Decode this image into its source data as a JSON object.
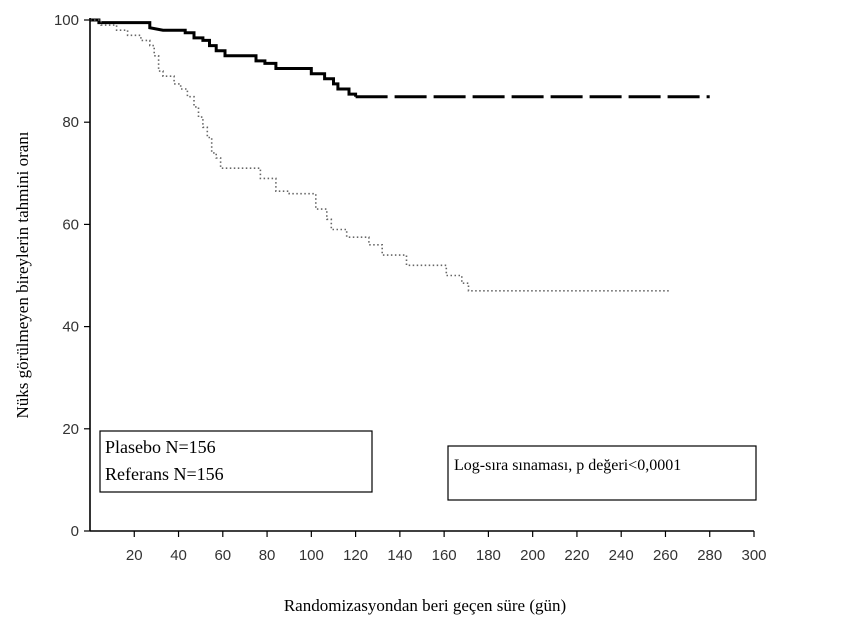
{
  "chart_data": {
    "type": "line",
    "xlabel": "Randomizasyondan beri geçen süre (gün)",
    "ylabel": "Nüks görülmeyen bireylerin tahmini oranı",
    "xlim": [
      0,
      300
    ],
    "ylim": [
      0,
      100
    ],
    "x_ticks": [
      20,
      40,
      60,
      80,
      100,
      120,
      140,
      160,
      180,
      200,
      220,
      240,
      260,
      280,
      300
    ],
    "y_ticks": [
      0,
      20,
      40,
      60,
      80,
      100
    ],
    "legend": [
      "Plasebo N=156",
      "Referans N=156"
    ],
    "annotation": "Log-sıra sınaması, p değeri<0,0001",
    "grid": false,
    "series": [
      {
        "style": "solid-then-dashed",
        "color": "#000000",
        "points": [
          [
            0,
            100
          ],
          [
            4,
            100
          ],
          [
            4,
            99.5
          ],
          [
            27,
            99.5
          ],
          [
            27,
            98.5
          ],
          [
            33,
            98
          ],
          [
            43,
            98
          ],
          [
            43,
            97.5
          ],
          [
            47,
            97.5
          ],
          [
            47,
            96.5
          ],
          [
            51,
            96.5
          ],
          [
            51,
            96
          ],
          [
            54,
            96
          ],
          [
            54,
            95
          ],
          [
            57,
            95
          ],
          [
            57,
            94
          ],
          [
            61,
            94
          ],
          [
            61,
            93
          ],
          [
            75,
            93
          ],
          [
            75,
            92
          ],
          [
            79,
            92
          ],
          [
            79,
            91.5
          ],
          [
            84,
            91.5
          ],
          [
            84,
            90.5
          ],
          [
            100,
            90.5
          ],
          [
            100,
            89.5
          ],
          [
            106,
            89.5
          ],
          [
            106,
            88.5
          ],
          [
            110,
            88.5
          ],
          [
            110,
            87.5
          ],
          [
            112,
            87.5
          ],
          [
            112,
            86.5
          ],
          [
            117,
            86.5
          ],
          [
            117,
            85.5
          ],
          [
            120,
            85.5
          ],
          [
            120,
            85
          ],
          [
            280,
            85
          ]
        ],
        "dash_start": 150
      },
      {
        "style": "dotted",
        "color": "#666666",
        "points": [
          [
            0,
            100
          ],
          [
            5,
            100
          ],
          [
            5,
            99
          ],
          [
            12,
            99
          ],
          [
            12,
            98
          ],
          [
            17,
            98
          ],
          [
            17,
            97
          ],
          [
            23,
            97
          ],
          [
            23,
            96
          ],
          [
            27,
            96
          ],
          [
            27,
            95
          ],
          [
            29,
            95
          ],
          [
            29,
            93
          ],
          [
            31,
            93
          ],
          [
            31,
            90
          ],
          [
            33,
            90
          ],
          [
            33,
            89
          ],
          [
            38,
            89
          ],
          [
            38,
            87.5
          ],
          [
            41,
            87.5
          ],
          [
            41,
            86.5
          ],
          [
            44,
            86.5
          ],
          [
            44,
            85
          ],
          [
            47,
            85
          ],
          [
            47,
            83
          ],
          [
            49,
            83
          ],
          [
            49,
            81
          ],
          [
            51,
            81
          ],
          [
            51,
            79
          ],
          [
            53,
            79
          ],
          [
            53,
            77
          ],
          [
            55,
            77
          ],
          [
            55,
            74
          ],
          [
            57,
            74
          ],
          [
            57,
            73
          ],
          [
            59,
            73
          ],
          [
            59,
            71
          ],
          [
            77,
            71
          ],
          [
            77,
            69
          ],
          [
            84,
            69
          ],
          [
            84,
            66.5
          ],
          [
            90,
            66.5
          ],
          [
            90,
            66
          ],
          [
            102,
            66
          ],
          [
            102,
            63
          ],
          [
            107,
            63
          ],
          [
            107,
            61
          ],
          [
            109,
            61
          ],
          [
            109,
            59
          ],
          [
            116,
            59
          ],
          [
            116,
            57.5
          ],
          [
            126,
            57.5
          ],
          [
            126,
            56
          ],
          [
            132,
            56
          ],
          [
            132,
            54
          ],
          [
            143,
            54
          ],
          [
            143,
            52
          ],
          [
            161,
            52
          ],
          [
            161,
            50
          ],
          [
            168,
            50
          ],
          [
            168,
            48.5
          ],
          [
            171,
            48.5
          ],
          [
            171,
            47
          ],
          [
            262,
            47
          ]
        ]
      }
    ]
  }
}
